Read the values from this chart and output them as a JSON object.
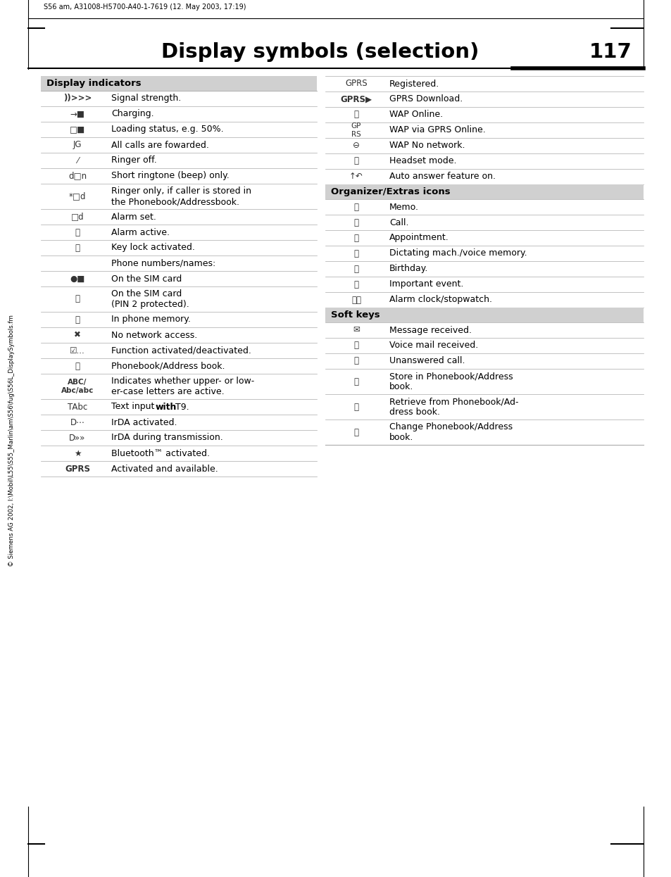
{
  "title": "Display symbols (selection)",
  "page_number": "117",
  "header_text": "S56 am, A31008-H5700-A40-1-7619 (12. May 2003, 17:19)",
  "footer_text": "© Siemens AG 2002, I:\\Mobil\\L55\\S55_Marlin\\am\\S56\\fug\\S56L_DisplaySymbols.fm",
  "left_header": "Display indicators",
  "organizer_header": "Organizer/Extras icons",
  "softkeys_header": "Soft keys",
  "left_texts": [
    "Signal strength.",
    "Charging.",
    "Loading status, e.g. 50%.",
    "All calls are fowarded.",
    "Ringer off.",
    "Short ringtone (beep) only.",
    "Ringer only, if caller is stored in\nthe Phonebook/Addressbook.",
    "Alarm set.",
    "Alarm active.",
    "Key lock activated.",
    "Phone numbers/names:",
    "On the SIM card",
    "On the SIM card\n(PIN 2 protected).",
    "In phone memory.",
    "No network access.",
    "Function activated/deactivated.",
    "Phonebook/Address book.",
    "Indicates whether upper- or low-\ner-case letters are active.",
    "Text input with T9.",
    "IrDA activated.",
    "IrDA during transmission.",
    "Bluetooth™ activated.",
    "Activated and available."
  ],
  "left_heights": [
    22,
    22,
    22,
    22,
    22,
    22,
    36,
    22,
    22,
    22,
    22,
    22,
    36,
    22,
    22,
    22,
    22,
    36,
    22,
    22,
    22,
    22,
    22
  ],
  "left_bold_icon": [
    true,
    false,
    false,
    false,
    false,
    false,
    false,
    false,
    false,
    false,
    false,
    false,
    false,
    false,
    false,
    false,
    false,
    true,
    false,
    false,
    false,
    false,
    true
  ],
  "left_bold_text": [
    false,
    false,
    false,
    false,
    false,
    false,
    false,
    false,
    false,
    false,
    false,
    false,
    false,
    false,
    false,
    false,
    false,
    false,
    true,
    false,
    false,
    false,
    false
  ],
  "right_top_texts": [
    "Registered.",
    "GPRS Download.",
    "WAP Online.",
    "WAP via GPRS Online.",
    "WAP No network.",
    "Headset mode.",
    "Auto answer feature on."
  ],
  "right_top_bold": [
    false,
    true,
    false,
    false,
    false,
    false,
    false
  ],
  "org_texts": [
    "Memo.",
    "Call.",
    "Appointment.",
    "Dictating mach./voice memory.",
    "Birthday.",
    "Important event.",
    "Alarm clock/stopwatch."
  ],
  "soft_texts": [
    "Message received.",
    "Voice mail received.",
    "Unanswered call.",
    "Store in Phonebook/Address\nbook.",
    "Retrieve from Phonebook/Ad-\ndress book.",
    "Change Phonebook/Address\nbook."
  ],
  "soft_heights": [
    22,
    22,
    22,
    36,
    36,
    36
  ],
  "bg_color": "#ffffff",
  "header_bg": "#d0d0d0",
  "line_color": "#aaaaaa"
}
